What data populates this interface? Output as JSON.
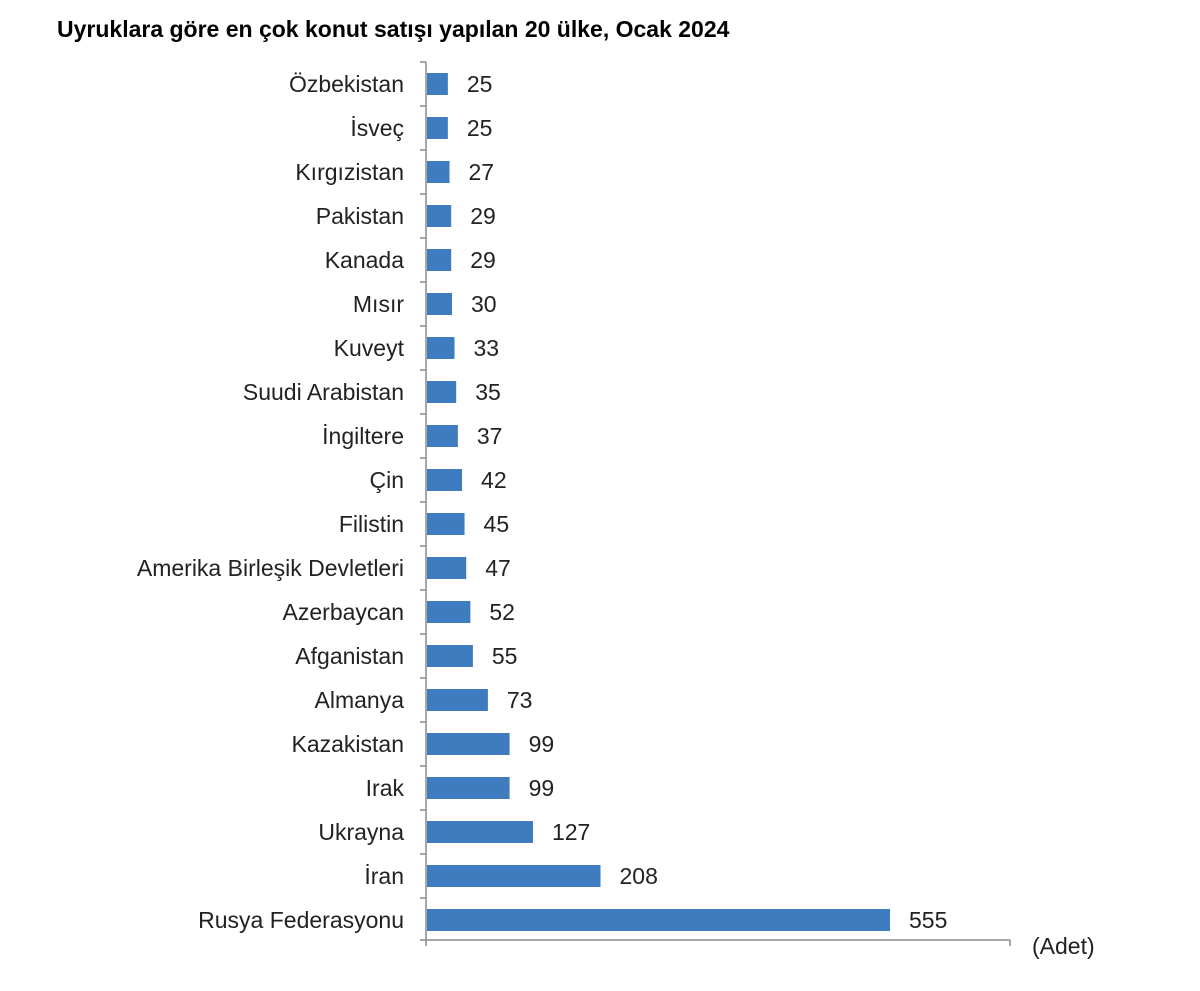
{
  "chart_data": {
    "type": "bar",
    "orientation": "horizontal",
    "title": "Uyruklara göre en çok konut satışı yapılan 20 ülke, Ocak 2024",
    "unit_label": "(Adet)",
    "bar_color": "#3f7cbf",
    "categories": [
      "Özbekistan",
      "İsveç",
      "Kırgızistan",
      "Pakistan",
      "Kanada",
      "Mısır",
      "Kuveyt",
      "Suudi Arabistan",
      "İngiltere",
      "Çin",
      "Filistin",
      "Amerika Birleşik Devletleri",
      "Azerbaycan",
      "Afganistan",
      "Almanya",
      "Kazakistan",
      "Irak",
      "Ukrayna",
      "İran",
      "Rusya Federasyonu"
    ],
    "values": [
      25,
      25,
      27,
      29,
      29,
      30,
      33,
      35,
      37,
      42,
      45,
      47,
      52,
      55,
      73,
      99,
      99,
      127,
      208,
      555
    ],
    "xlim": [
      0,
      700
    ],
    "grid": false
  }
}
